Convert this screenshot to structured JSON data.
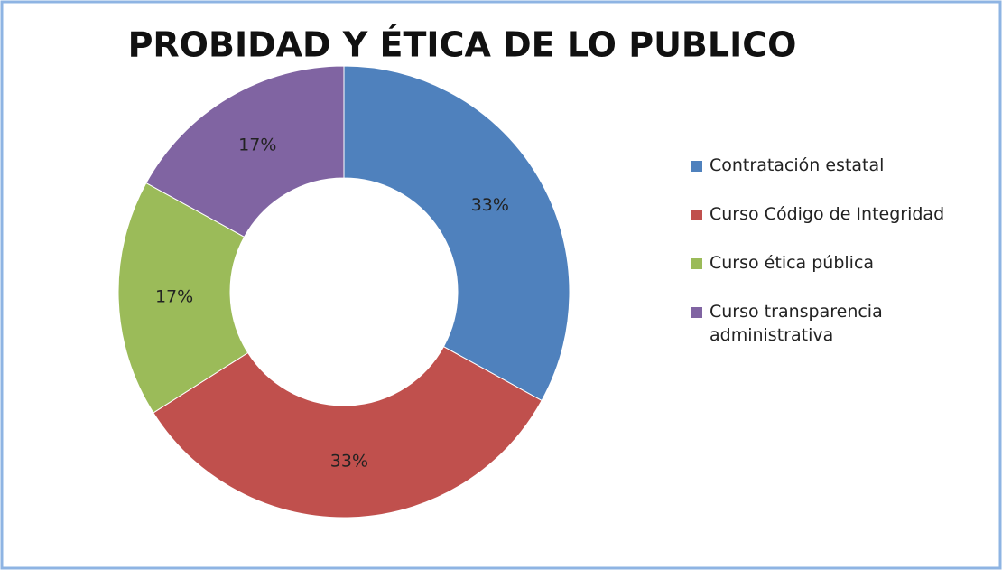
{
  "chart_data": {
    "type": "donut",
    "title": "PROBIDAD Y ÉTICA DE LO PUBLICO",
    "categories": [
      "Contratación estatal",
      "Curso Código de Integridad",
      "Curso ética pública",
      "Curso transparencia administrativa"
    ],
    "values": [
      33,
      33,
      17,
      17
    ],
    "value_labels": [
      "33%",
      "33%",
      "17%",
      "17%"
    ],
    "colors": [
      "#4f81bd",
      "#c0504d",
      "#9bbb59",
      "#8064a2"
    ],
    "legend": "right"
  }
}
